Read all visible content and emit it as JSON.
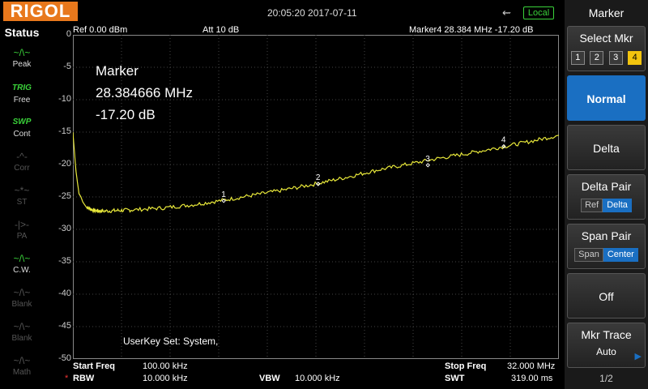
{
  "header": {
    "logo": "RIGOL",
    "datetime": "20:05:20 2017-07-11",
    "usb_icon": "usb-icon",
    "local_badge": "Local"
  },
  "status_panel": {
    "title": "Status",
    "items": [
      {
        "icon": "~/\\~",
        "label": "Peak",
        "enabled": true
      },
      {
        "icon": "TRIG",
        "label": "Free",
        "enabled": true
      },
      {
        "icon": "SWP",
        "label": "Cont",
        "enabled": true
      },
      {
        "icon": "-^-",
        "label": "Corr",
        "enabled": false
      },
      {
        "icon": "~*~",
        "label": "ST",
        "enabled": false
      },
      {
        "icon": "-|>-",
        "label": "PA",
        "enabled": false
      },
      {
        "icon": "~/\\~",
        "label": "C.W.",
        "enabled": true
      },
      {
        "icon": "~/\\~",
        "label": "Blank",
        "enabled": false
      },
      {
        "icon": "~/\\~",
        "label": "Blank",
        "enabled": false
      },
      {
        "icon": "~/\\~",
        "label": "Math",
        "enabled": false
      }
    ]
  },
  "display": {
    "ref": "Ref  0.00 dBm",
    "att": "Att      10 dB",
    "marker_info": "Marker4   28.384 MHz   -17.20 dB",
    "marker_label": "Marker",
    "marker_freq": "28.384666 MHz",
    "marker_level": "-17.20 dB",
    "userkey": "UserKey Set:     System,",
    "y_ticks": [
      "0",
      "-5",
      "-10",
      "-15",
      "-20",
      "-25",
      "-30",
      "-35",
      "-40",
      "-45",
      "-50"
    ],
    "trace_color": "#e8e83a"
  },
  "chart_data": {
    "type": "line",
    "xlim": [
      0.1,
      32.0
    ],
    "ylim": [
      -50,
      0
    ],
    "x": [
      0.1,
      0.3,
      0.5,
      1,
      1.5,
      2,
      3,
      4,
      6,
      8,
      10,
      12,
      14,
      16,
      18,
      20,
      22,
      24,
      26,
      28,
      30,
      32
    ],
    "y": [
      -15,
      -21,
      -24.5,
      -26.6,
      -27.1,
      -27.2,
      -27.1,
      -27.0,
      -26.7,
      -26.2,
      -25.5,
      -24.7,
      -23.9,
      -23.0,
      -22.0,
      -20.9,
      -20.0,
      -19.1,
      -18.3,
      -17.4,
      -16.5,
      -15.5
    ],
    "markers": [
      {
        "label": "1",
        "x": 10.0,
        "y": -25.6
      },
      {
        "label": "2",
        "x": 16.2,
        "y": -23.0
      },
      {
        "label": "3",
        "x": 23.4,
        "y": -20.1
      },
      {
        "label": "4",
        "x": 28.38,
        "y": -17.2
      }
    ]
  },
  "bottom": {
    "start_freq_label": "Start Freq",
    "start_freq_value": "100.00 kHz",
    "stop_freq_label": "Stop Freq",
    "stop_freq_value": "32.000 MHz",
    "rbw_label": "RBW",
    "rbw_value": "10.000 kHz",
    "vbw_label": "VBW",
    "vbw_value": "10.000 kHz",
    "swt_label": "SWT",
    "swt_value": "319.00 ms",
    "rbw_star": "*"
  },
  "menu": {
    "title": "Marker",
    "select_mkr": "Select Mkr",
    "markers": [
      "1",
      "2",
      "3",
      "4"
    ],
    "active_marker": "4",
    "normal": "Normal",
    "delta": "Delta",
    "delta_pair": "Delta Pair",
    "delta_pair_options": [
      "Ref",
      "Delta"
    ],
    "span_pair": "Span Pair",
    "span_pair_options": [
      "Span",
      "Center"
    ],
    "off": "Off",
    "mkr_trace": "Mkr Trace",
    "mkr_trace_value": "Auto",
    "page": "1/2",
    "accent": "#1a6fc2",
    "marker_active_color": "#f2c40e"
  }
}
